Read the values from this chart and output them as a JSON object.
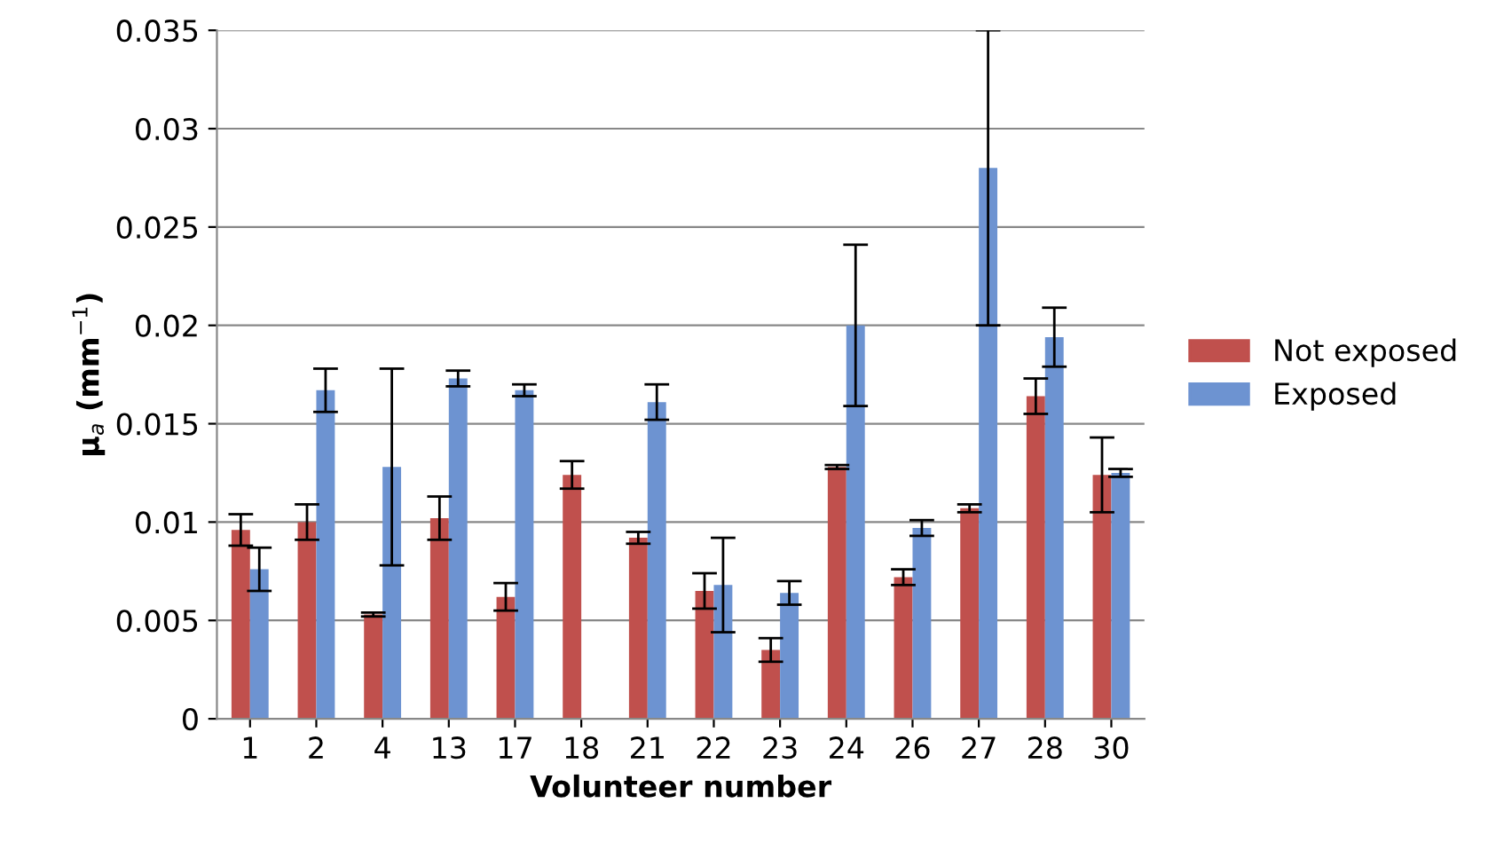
{
  "chart_data": {
    "type": "bar",
    "xlabel": "Volunteer number",
    "ylabel": "μ$_{a}$ (mm$^{−1}$)",
    "categories": [
      "1",
      "2",
      "4",
      "13",
      "17",
      "18",
      "21",
      "22",
      "23",
      "24",
      "26",
      "27",
      "28",
      "30"
    ],
    "series": [
      {
        "name": "Not exposed",
        "color": "#c0504d",
        "values": [
          0.0096,
          0.01,
          0.0053,
          0.0102,
          0.0062,
          0.0124,
          0.0092,
          0.0065,
          0.0035,
          0.0128,
          0.0072,
          0.0107,
          0.0164,
          0.0124
        ],
        "errors": [
          0.0008,
          0.0009,
          0.0001,
          0.0011,
          0.0007,
          0.0007,
          0.0003,
          0.0009,
          0.0006,
          0.0001,
          0.0004,
          0.0002,
          0.0009,
          0.0019
        ]
      },
      {
        "name": "Exposed",
        "color": "#6d93d1",
        "values": [
          0.0076,
          0.0167,
          0.0128,
          0.0173,
          0.0167,
          null,
          0.0161,
          0.0068,
          0.0064,
          0.02,
          0.0097,
          0.028,
          0.0194,
          0.0125
        ],
        "errors": [
          0.0011,
          0.0011,
          0.005,
          0.0004,
          0.0003,
          null,
          0.0009,
          0.0024,
          0.0006,
          0.0041,
          0.0004,
          [
            0.02,
            0.035
          ],
          0.0015,
          0.0002
        ]
      }
    ],
    "ylim": [
      0,
      0.035
    ],
    "yticks": [
      0,
      0.005,
      0.01,
      0.015,
      0.02,
      0.025,
      0.03,
      0.035
    ],
    "grid": "y",
    "legend": "right"
  }
}
